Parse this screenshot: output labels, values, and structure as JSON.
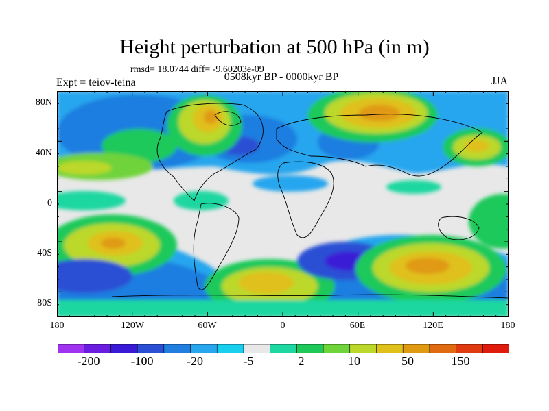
{
  "title": "Height perturbation at 500 hPa (in m)",
  "stats": "rmsd= 18.0744 diff= -9.60203e-09",
  "subtitle": "0508kyr BP - 0000kyr BP",
  "left_label": "Expt = teiov-teina",
  "right_label": "JJA",
  "lat_ticks": [
    "80N",
    "40N",
    "0",
    "40S",
    "80S"
  ],
  "lon_ticks": [
    "180",
    "120W",
    "60W",
    "0",
    "60E",
    "120E",
    "180"
  ],
  "colorbar": {
    "labels": [
      "-200",
      "-100",
      "-20",
      "-5",
      "2",
      "10",
      "50",
      "150"
    ],
    "colors": [
      "#a033f0",
      "#6a1de0",
      "#3a1ad6",
      "#2a4fd4",
      "#1f7ee0",
      "#28a6ee",
      "#19cfee",
      "#e8e8e8",
      "#1fd7a0",
      "#1ec95a",
      "#6fd33a",
      "#bcd82a",
      "#e0c01a",
      "#e09a12",
      "#e06a10",
      "#e03a10",
      "#e01a0c"
    ]
  }
}
